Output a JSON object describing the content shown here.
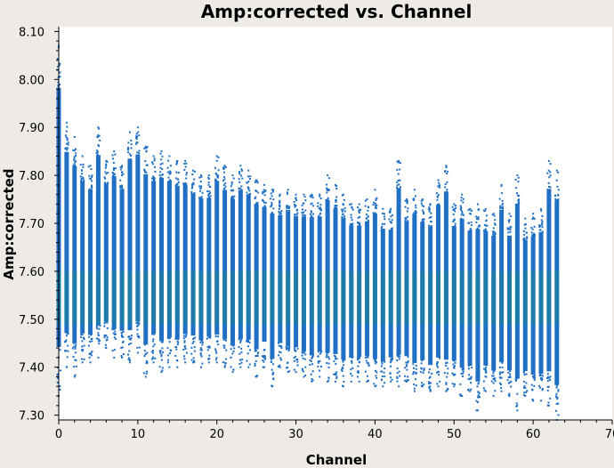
{
  "chart_data": {
    "type": "scatter",
    "title": "Amp:corrected vs. Channel",
    "xlabel": "Channel",
    "ylabel": "Amp:corrected",
    "xlim": [
      0,
      70
    ],
    "ylim": [
      7.29,
      8.11
    ],
    "xticks": [
      0,
      10,
      20,
      30,
      40,
      50,
      60,
      70
    ],
    "xtick_labels": [
      "0",
      "10",
      "20",
      "30",
      "40",
      "50",
      "60",
      "70"
    ],
    "yticks": [
      7.3,
      7.4,
      7.5,
      7.6,
      7.7,
      7.8,
      7.9,
      8.0,
      8.1
    ],
    "ytick_labels": [
      "7.30",
      "7.40",
      "7.50",
      "7.60",
      "7.70",
      "7.80",
      "7.90",
      "8.00",
      "8.10"
    ],
    "grid": false,
    "colors": {
      "point": "#1f6fc4",
      "point_alt": "#1a8a8a",
      "axes": "#000000",
      "background": "#ffffff"
    },
    "series": [
      {
        "name": "channel_ranges",
        "x": [
          0,
          1,
          2,
          3,
          4,
          5,
          6,
          7,
          8,
          9,
          10,
          11,
          12,
          13,
          14,
          15,
          16,
          17,
          18,
          19,
          20,
          21,
          22,
          23,
          24,
          25,
          26,
          27,
          28,
          29,
          30,
          31,
          32,
          33,
          34,
          35,
          36,
          37,
          38,
          39,
          40,
          41,
          42,
          43,
          44,
          45,
          46,
          47,
          48,
          49,
          50,
          51,
          52,
          53,
          54,
          55,
          56,
          57,
          58,
          59,
          60,
          61,
          62,
          63
        ],
        "ymin": [
          7.34,
          7.4,
          7.38,
          7.41,
          7.41,
          7.42,
          7.44,
          7.42,
          7.42,
          7.41,
          7.43,
          7.38,
          7.41,
          7.39,
          7.4,
          7.4,
          7.41,
          7.41,
          7.4,
          7.41,
          7.41,
          7.4,
          7.39,
          7.4,
          7.4,
          7.38,
          7.4,
          7.36,
          7.4,
          7.39,
          7.39,
          7.38,
          7.37,
          7.38,
          7.37,
          7.37,
          7.36,
          7.37,
          7.37,
          7.37,
          7.36,
          7.36,
          7.37,
          7.36,
          7.37,
          7.35,
          7.36,
          7.35,
          7.36,
          7.35,
          7.36,
          7.34,
          7.35,
          7.31,
          7.35,
          7.34,
          7.35,
          7.34,
          7.31,
          7.34,
          7.33,
          7.33,
          7.32,
          7.29
        ],
        "ymax": [
          8.07,
          7.91,
          7.88,
          7.84,
          7.82,
          7.9,
          7.83,
          7.85,
          7.82,
          7.89,
          7.9,
          7.86,
          7.84,
          7.85,
          7.84,
          7.83,
          7.83,
          7.81,
          7.8,
          7.8,
          7.84,
          7.82,
          7.8,
          7.82,
          7.81,
          7.79,
          7.78,
          7.77,
          7.76,
          7.77,
          7.76,
          7.76,
          7.76,
          7.76,
          7.8,
          7.78,
          7.76,
          7.74,
          7.74,
          7.75,
          7.77,
          7.73,
          7.73,
          7.83,
          7.75,
          7.77,
          7.75,
          7.74,
          7.79,
          7.82,
          7.74,
          7.76,
          7.73,
          7.74,
          7.73,
          7.72,
          7.78,
          7.72,
          7.8,
          7.71,
          7.72,
          7.73,
          7.83,
          7.81
        ]
      }
    ]
  }
}
